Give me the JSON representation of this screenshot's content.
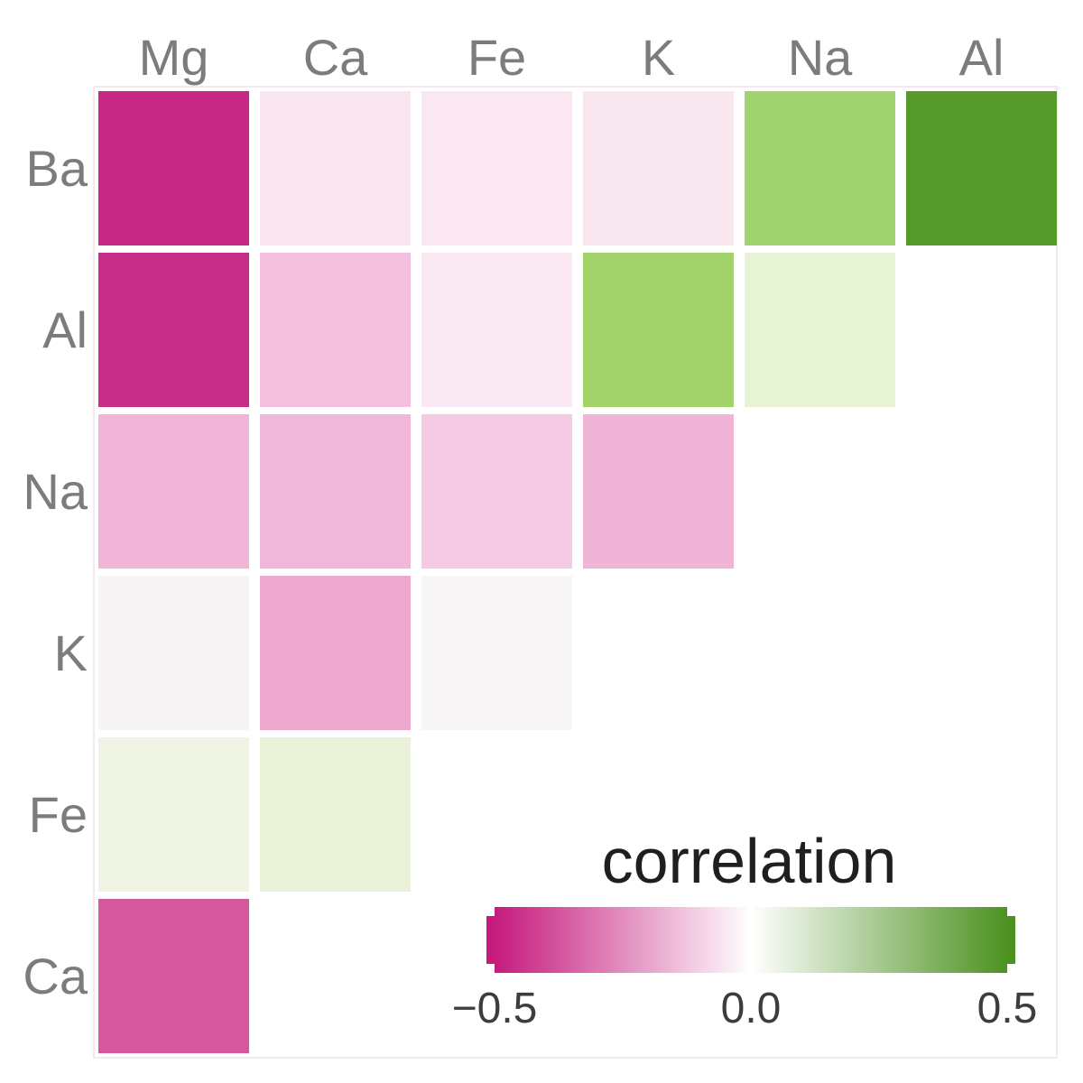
{
  "figure": {
    "background": "#ffffff",
    "axis_text_color": "#7c7c7c",
    "panel_border_color": "#f5e8ef"
  },
  "chart_data": {
    "type": "heatmap",
    "subtype": "lower-triangle-correlation-matrix",
    "columns": [
      "Mg",
      "Ca",
      "Fe",
      "K",
      "Na",
      "Al"
    ],
    "rows": [
      "Ba",
      "Al",
      "Na",
      "K",
      "Fe",
      "Ca"
    ],
    "grid": false,
    "cells": [
      {
        "row": "Ba",
        "col": "Mg",
        "value": -0.47,
        "color": "#C52984"
      },
      {
        "row": "Ba",
        "col": "Ca",
        "value": -0.05,
        "color": "#FAE6F1"
      },
      {
        "row": "Ba",
        "col": "Fe",
        "value": -0.05,
        "color": "#FAE7F1"
      },
      {
        "row": "Ba",
        "col": "K",
        "value": -0.05,
        "color": "#F9E7F0"
      },
      {
        "row": "Ba",
        "col": "Na",
        "value": 0.27,
        "color": "#A0D46E"
      },
      {
        "row": "Ba",
        "col": "Al",
        "value": 0.47,
        "color": "#569A2B"
      },
      {
        "row": "Al",
        "col": "Mg",
        "value": -0.46,
        "color": "#C62E87"
      },
      {
        "row": "Al",
        "col": "Ca",
        "value": -0.14,
        "color": "#F2BFDD"
      },
      {
        "row": "Al",
        "col": "Fe",
        "value": -0.05,
        "color": "#FAE8F2"
      },
      {
        "row": "Al",
        "col": "K",
        "value": 0.26,
        "color": "#A2D36B"
      },
      {
        "row": "Al",
        "col": "Na",
        "value": 0.06,
        "color": "#E8F3D6"
      },
      {
        "row": "Na",
        "col": "Mg",
        "value": -0.16,
        "color": "#F0B5D7"
      },
      {
        "row": "Na",
        "col": "Ca",
        "value": -0.16,
        "color": "#F0B7D8"
      },
      {
        "row": "Na",
        "col": "Fe",
        "value": -0.12,
        "color": "#F5CAE3"
      },
      {
        "row": "Na",
        "col": "K",
        "value": -0.16,
        "color": "#F0B4D7"
      },
      {
        "row": "K",
        "col": "Mg",
        "value": -0.01,
        "color": "#F7F4F5"
      },
      {
        "row": "K",
        "col": "Ca",
        "value": -0.19,
        "color": "#EDA9CD"
      },
      {
        "row": "K",
        "col": "Fe",
        "value": -0.01,
        "color": "#F7F5F5"
      },
      {
        "row": "Fe",
        "col": "Mg",
        "value": 0.04,
        "color": "#EFF4E4"
      },
      {
        "row": "Fe",
        "col": "Ca",
        "value": 0.06,
        "color": "#E9F2D9"
      },
      {
        "row": "Ca",
        "col": "Mg",
        "value": -0.37,
        "color": "#D4589B"
      }
    ],
    "legend": {
      "title": "correlation",
      "position": "bottom-right",
      "orientation": "horizontal",
      "range": [
        -0.5,
        0.5
      ],
      "tick_labels": [
        "−0.5",
        "0.0",
        "0.5"
      ],
      "tick_values": [
        -0.5,
        0.0,
        0.5
      ],
      "gradient": {
        "low": "#C51B7D",
        "mid": "#FFFFFF",
        "high": "#4D9221"
      }
    }
  }
}
